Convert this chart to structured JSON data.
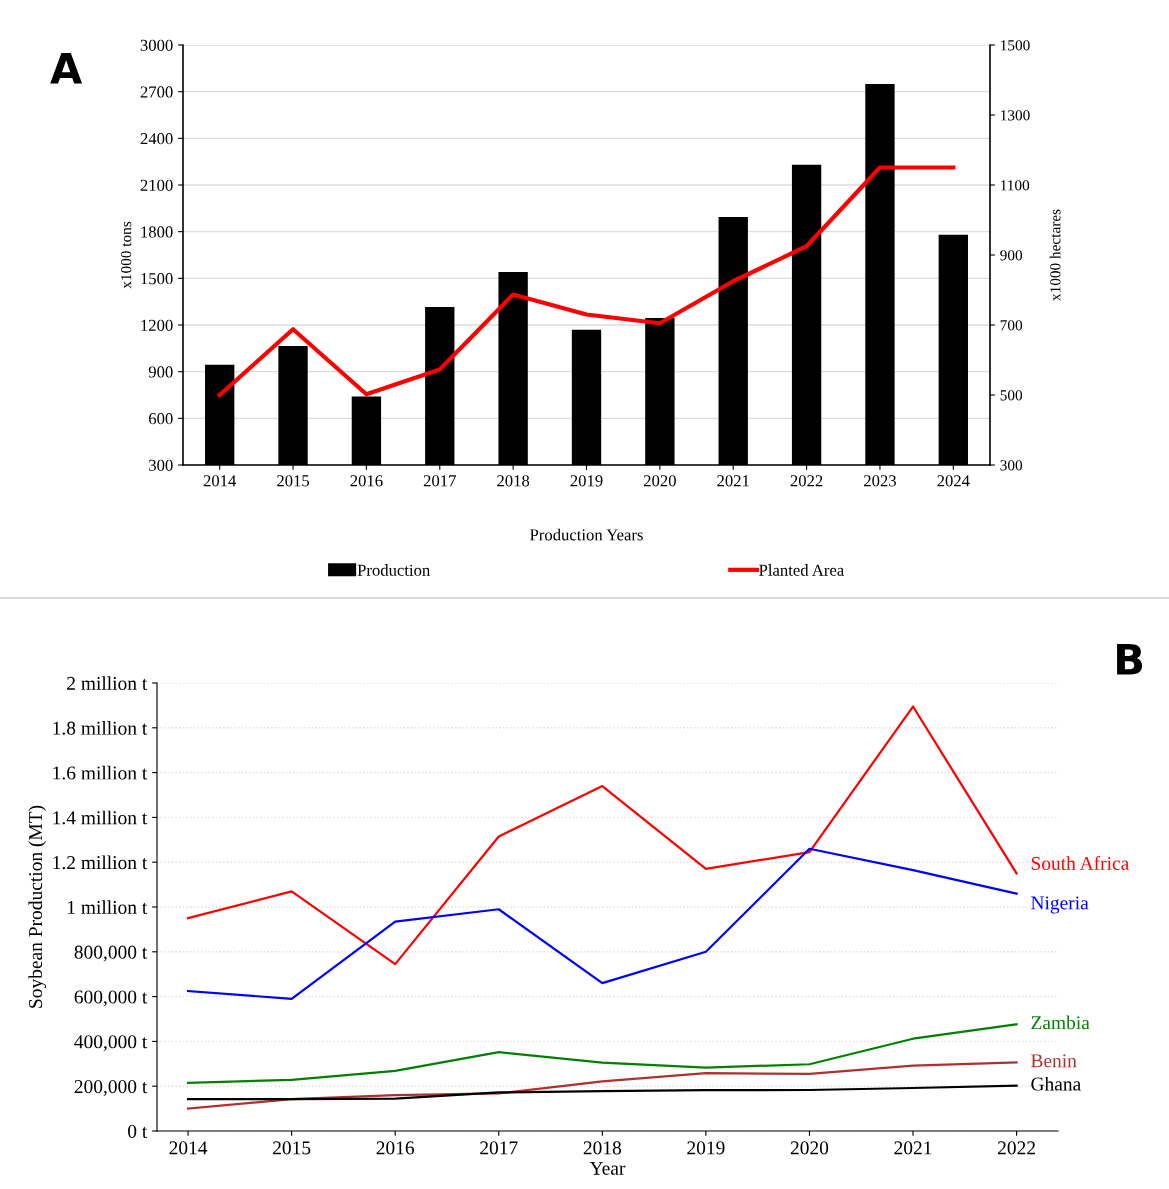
{
  "chart_data": [
    {
      "type": "bar",
      "annotations": [
        "A"
      ],
      "xlabel": "Production Years",
      "ylabel": "x1000 tons",
      "y2label": "x1000 hectares",
      "categories": [
        "2014",
        "2015",
        "2016",
        "2017",
        "2018",
        "2019",
        "2020",
        "2021",
        "2022",
        "2023",
        "2024"
      ],
      "series": [
        {
          "name": "Production",
          "color": "#000000",
          "type": "bar",
          "values": [
            945,
            1065,
            740,
            1315,
            1540,
            1170,
            1245,
            1895,
            2230,
            2750,
            1780
          ]
        },
        {
          "name": "Planted Area",
          "color": "#ff0000",
          "type": "line",
          "axis": "y2",
          "values": [
            500,
            688,
            502,
            573,
            787,
            730,
            705,
            825,
            925,
            1150,
            1150
          ]
        }
      ],
      "ylim": [
        300,
        3000
      ],
      "yticks": [
        300,
        600,
        900,
        1200,
        1500,
        1800,
        2100,
        2400,
        2700,
        3000
      ],
      "y2lim": [
        300,
        1500
      ],
      "y2ticks": [
        300,
        500,
        700,
        900,
        1100,
        1300,
        1500
      ],
      "grid": "y",
      "legend": "bottom"
    },
    {
      "type": "line",
      "annotations": [
        "B"
      ],
      "xlabel": "Year",
      "ylabel": "Soybean Production (MT)",
      "categories": [
        "2014",
        "2015",
        "2016",
        "2017",
        "2018",
        "2019",
        "2020",
        "2021",
        "2022"
      ],
      "series": [
        {
          "name": "South Africa",
          "color": "#ff0000",
          "values": [
            950000,
            1070000,
            745000,
            1315000,
            1540000,
            1170000,
            1245000,
            1895000,
            1150000
          ]
        },
        {
          "name": "Nigeria",
          "color": "#0000ff",
          "values": [
            625000,
            590000,
            935000,
            990000,
            660000,
            800000,
            1260000,
            1165000,
            1060000
          ]
        },
        {
          "name": "Zambia",
          "color": "#008000",
          "values": [
            215000,
            228000,
            268000,
            352000,
            305000,
            283000,
            298000,
            412000,
            476000
          ]
        },
        {
          "name": "Benin",
          "color": "#b03030",
          "values": [
            100000,
            142000,
            160000,
            168000,
            222000,
            258000,
            255000,
            292000,
            306000
          ]
        },
        {
          "name": "Ghana",
          "color": "#000000",
          "values": [
            142000,
            142000,
            145000,
            172000,
            178000,
            182000,
            183000,
            192000,
            202000
          ]
        }
      ],
      "ylim": [
        0,
        2000000
      ],
      "yticks": [
        {
          "value": 0,
          "label": "0 t"
        },
        {
          "value": 200000,
          "label": "200,000 t"
        },
        {
          "value": 400000,
          "label": "400,000 t"
        },
        {
          "value": 600000,
          "label": "600,000 t"
        },
        {
          "value": 800000,
          "label": "800,000 t"
        },
        {
          "value": 1000000,
          "label": "1 million t"
        },
        {
          "value": 1200000,
          "label": "1.2 million t"
        },
        {
          "value": 1400000,
          "label": "1.4 million t"
        },
        {
          "value": 1600000,
          "label": "1.6 million t"
        },
        {
          "value": 1800000,
          "label": "1.8 million t"
        },
        {
          "value": 2000000,
          "label": "2 million t"
        }
      ],
      "grid": "y",
      "legend": false
    }
  ]
}
